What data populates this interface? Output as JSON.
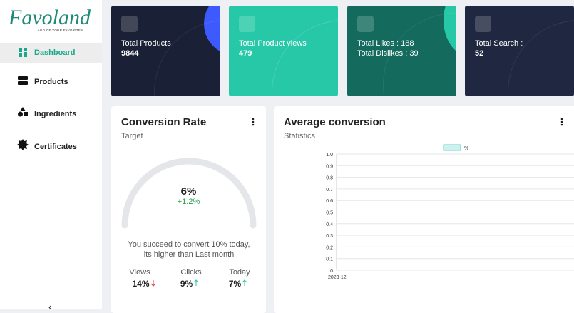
{
  "sidebar": {
    "logo": "Favoland",
    "tagline": "LAND OF YOUR FAVORITES",
    "items": [
      "Dashboard",
      "Products",
      "Ingredients",
      "Certificates"
    ],
    "collapse": "‹"
  },
  "cards": [
    {
      "title": "Total Products",
      "value": "9844"
    },
    {
      "title": "Total Product views",
      "value": "479"
    },
    {
      "lines": [
        "Total Likes : 188",
        "Total Dislikes : 39"
      ]
    },
    {
      "title": "Total Search :",
      "value": "52"
    }
  ],
  "conversion": {
    "title": "Conversion Rate",
    "subtitle": "Target",
    "value": "6%",
    "change": "+1.2%",
    "message": "You succeed to convert 10% today, its higher than Last month",
    "stats": [
      {
        "label": "Views",
        "value": "14%"
      },
      {
        "label": "Clicks",
        "value": "9%"
      },
      {
        "label": "Today",
        "value": "7%"
      }
    ]
  },
  "average_conversion": {
    "title": "Average conversion",
    "subtitle": "Statistics",
    "chart": {
      "type": "line",
      "categories": [
        "2023-12"
      ],
      "series": [
        {
          "name": "%",
          "color": "#5fd0c8",
          "values": [
            null
          ]
        }
      ],
      "ylim": [
        0,
        1
      ],
      "yticks": [
        0,
        0.1,
        0.2,
        0.3,
        0.4,
        0.5,
        0.6,
        0.7,
        0.8,
        0.9,
        {
          "value": 1,
          "label": "1.0"
        }
      ],
      "grid": true
    }
  }
}
